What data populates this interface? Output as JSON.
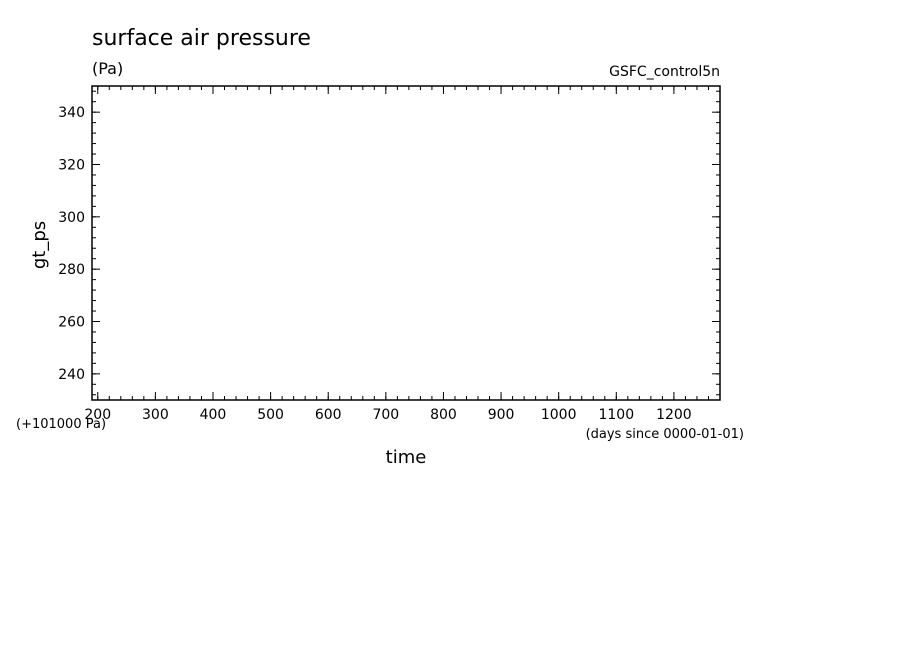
{
  "chart_data": {
    "type": "line",
    "title": "surface air pressure",
    "units_label": "(Pa)",
    "run_label": "GSFC_control5n",
    "xlabel": "time",
    "ylabel": "gt_ps",
    "x_units_note": "(days since 0000-01-01)",
    "y_offset_note": "(+101000 Pa)",
    "xlim": [
      190,
      1280
    ],
    "ylim": [
      230,
      350
    ],
    "x_major_ticks": [
      200,
      300,
      400,
      500,
      600,
      700,
      800,
      900,
      1000,
      1100,
      1200
    ],
    "x_minor_step": 20,
    "y_major_ticks": [
      240,
      260,
      280,
      300,
      320,
      340
    ],
    "y_minor_step": 4,
    "series": [],
    "grid": false
  }
}
